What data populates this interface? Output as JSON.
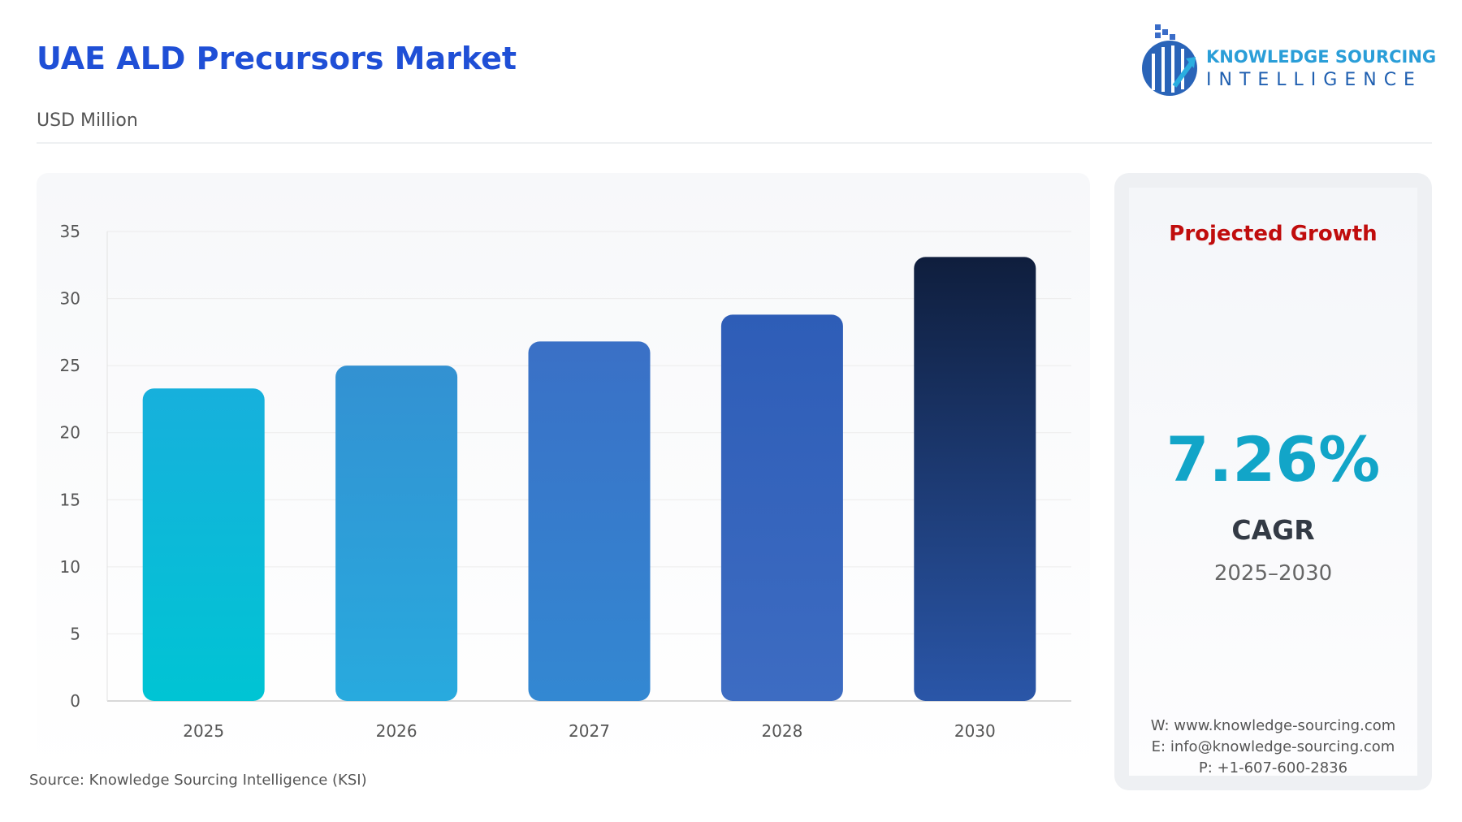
{
  "header": {
    "title": "UAE ALD Precursors Market",
    "subtitle": "USD Million"
  },
  "logo": {
    "line1": "KNOWLEDGE SOURCING",
    "line2": "INTELLIGENCE"
  },
  "card": {
    "heading": "Projected Growth",
    "value": "7.26%",
    "label": "CAGR",
    "period": "2025–2030",
    "website": "W: www.knowledge-sourcing.com",
    "email": "E: info@knowledge-sourcing.com",
    "phone": "P: +1-607-600-2836"
  },
  "source": "Source: Knowledge Sourcing Intelligence (KSI)",
  "chart_data": {
    "type": "bar",
    "categories": [
      "2025",
      "2026",
      "2027",
      "2028",
      "2030"
    ],
    "values": [
      23.3,
      25.0,
      26.8,
      28.8,
      33.1
    ],
    "ylim": [
      0,
      35
    ],
    "yticks": [
      0,
      5,
      10,
      15,
      20,
      25,
      30,
      35
    ],
    "grid": true,
    "colors": [
      [
        "#00c4d4",
        "#17b0dc"
      ],
      [
        "#28aade",
        "#3391d2"
      ],
      [
        "#3388d2",
        "#3a70c6"
      ],
      [
        "#3d6cc2",
        "#2e5db7"
      ],
      [
        "#2a56a8",
        "#0f1e3d"
      ]
    ]
  }
}
